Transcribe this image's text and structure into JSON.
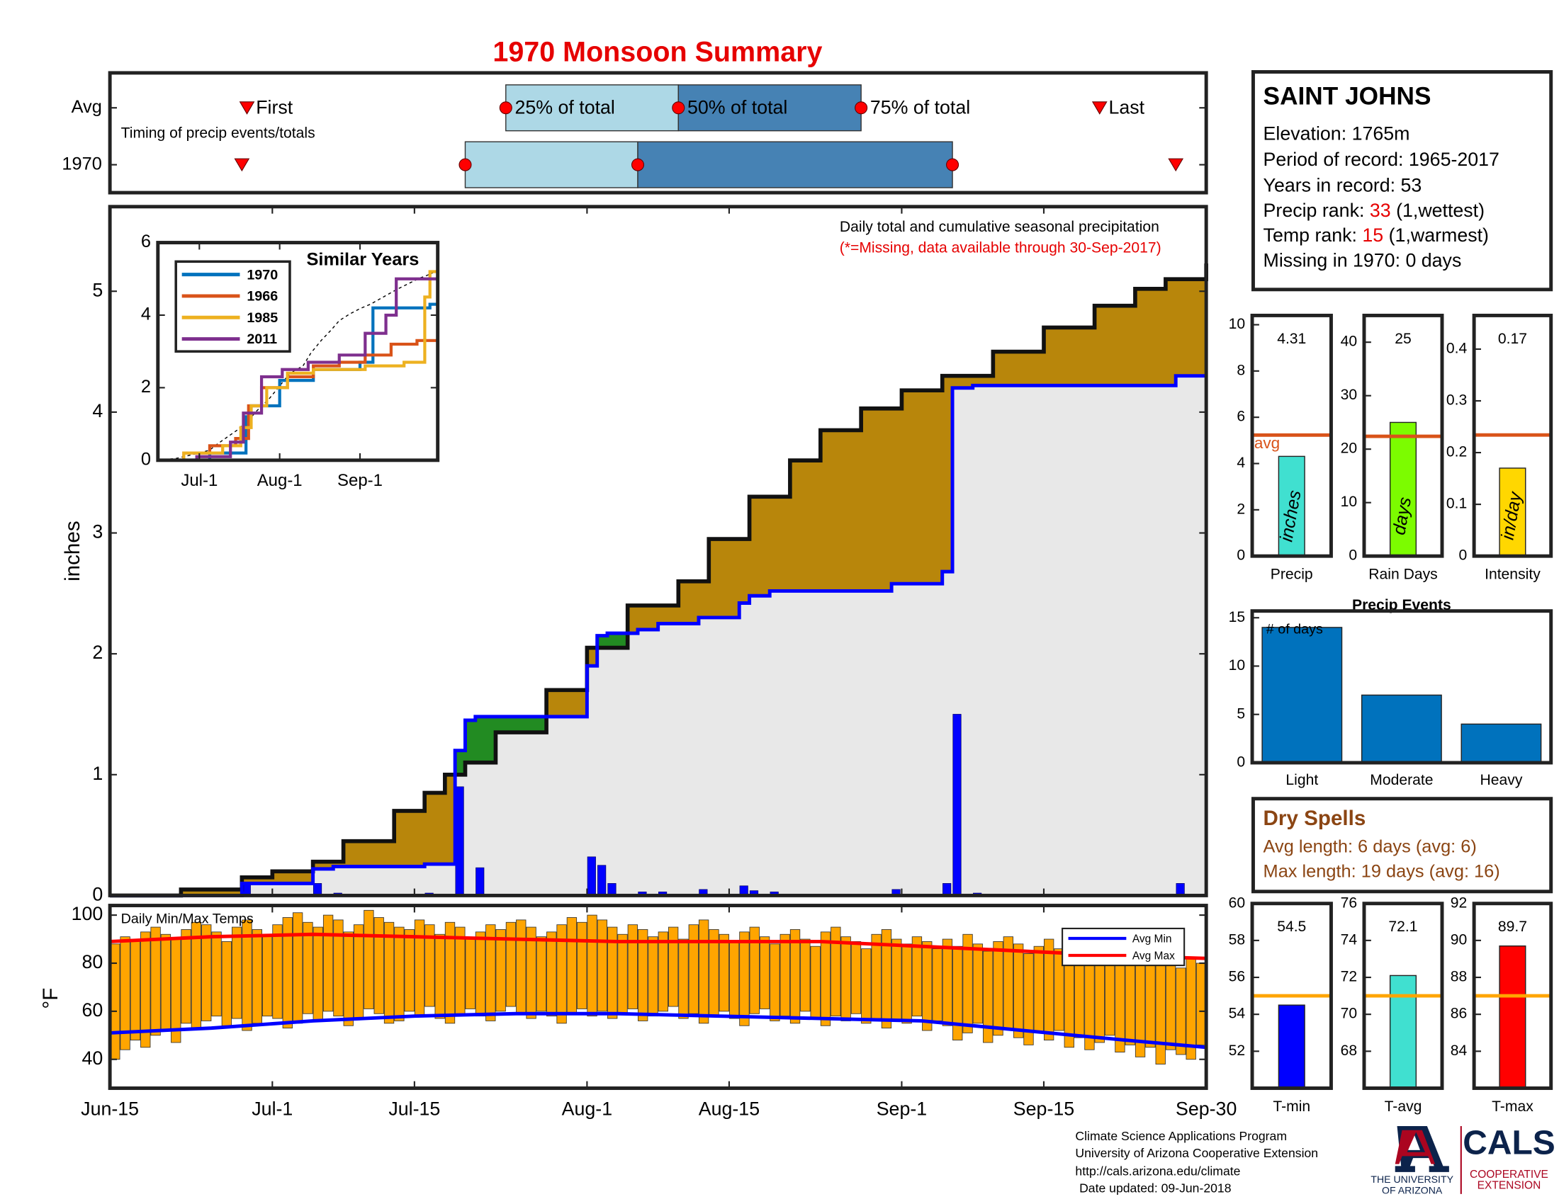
{
  "title": "1970 Monsoon Summary",
  "station": {
    "name": "SAINT JOHNS",
    "elevation": "Elevation: 1765m",
    "period": "Period of record: 1965-2017",
    "years": "Years in record: 53",
    "precip_rank": {
      "label": "Precip rank:",
      "value": 33,
      "note": "(1,wettest)"
    },
    "temp_rank": {
      "label": "Temp rank:",
      "value": 15,
      "note": "(1,warmest)"
    },
    "missing": "Missing in 1970: 0 days"
  },
  "dry_spells": {
    "title": "Dry Spells",
    "avg": "Avg length: 6 days (avg: 6)",
    "max": "Max length: 19 days (avg: 16)"
  },
  "footer": [
    "Climate Science Applications Program",
    "University of Arizona Cooperative Extension",
    "http://cals.arizona.edu/climate",
    "Date updated: 09-Jun-2018"
  ],
  "logos": {
    "ua": [
      "THE UNIVERSITY",
      "OF ARIZONA"
    ],
    "cals": "CALS",
    "coop": [
      "COOPERATIVE",
      "EXTENSION"
    ]
  },
  "chart_data": [
    {
      "type": "timing",
      "subtitle": "Timing of precip events/totals",
      "xlim": [
        0,
        108
      ],
      "rows": [
        {
          "name": "Avg",
          "values": [
            13.5,
            39,
            56,
            74,
            97.5
          ],
          "labels": [
            "First",
            "25% of total",
            "50% of total",
            "75% of total",
            "Last"
          ]
        },
        {
          "name": "1970",
          "values": [
            13,
            35,
            52,
            83,
            105
          ]
        }
      ],
      "box_colors": [
        "#add8e6",
        "#4682b4"
      ],
      "marker_color": "#ff0000"
    },
    {
      "type": "cumulative",
      "title": "Daily total and cumulative seasonal precipitation",
      "subtitle": "(*=Missing, data available through 30-Sep-2017)",
      "ylabel": "inches",
      "xlim": [
        0,
        108
      ],
      "xticks": [
        0,
        16,
        30,
        47,
        61,
        78,
        92,
        108
      ],
      "ylim": [
        0,
        5.7
      ],
      "yticks": [
        0,
        1,
        2,
        3,
        4,
        5
      ],
      "series": [
        {
          "color": "#b8860b",
          "x": [
            0,
            7,
            13,
            16,
            20,
            23,
            28,
            31,
            33,
            35,
            38,
            43,
            47,
            51,
            56,
            59,
            63,
            67,
            70,
            74,
            78,
            82,
            87,
            92,
            97,
            101,
            104,
            108
          ],
          "values": [
            0,
            0.05,
            0.15,
            0.2,
            0.28,
            0.45,
            0.7,
            0.85,
            1.0,
            1.1,
            1.35,
            1.7,
            2.05,
            2.4,
            2.6,
            2.95,
            3.3,
            3.6,
            3.85,
            4.03,
            4.18,
            4.3,
            4.5,
            4.7,
            4.88,
            5.02,
            5.1,
            5.23
          ]
        },
        {
          "color": "#0000ff",
          "x": [
            0,
            13,
            20,
            22,
            31,
            34,
            35,
            36,
            47,
            48,
            49,
            52,
            54,
            58,
            62,
            63,
            65,
            77,
            82,
            83,
            85,
            105,
            108
          ],
          "values": [
            0,
            0.1,
            0.22,
            0.24,
            0.26,
            1.2,
            1.45,
            1.48,
            1.9,
            2.15,
            2.17,
            2.2,
            2.25,
            2.3,
            2.42,
            2.48,
            2.52,
            2.58,
            2.68,
            4.2,
            4.22,
            4.3,
            4.3
          ]
        }
      ],
      "daily": {
        "color": "#0000ff",
        "x": [
          13,
          20,
          22,
          31,
          34,
          36,
          47,
          48,
          49,
          52,
          54,
          58,
          62,
          63,
          65,
          77,
          82,
          83,
          85,
          105
        ],
        "values": [
          0.1,
          0.1,
          0.02,
          0.02,
          0.9,
          0.23,
          0.32,
          0.25,
          0.1,
          0.03,
          0.03,
          0.05,
          0.08,
          0.04,
          0.03,
          0.05,
          0.1,
          1.5,
          0.02,
          0.1
        ]
      },
      "above_color": "#228b22",
      "below_color": "#e8e8e8",
      "drawstyle": "steps-post"
    },
    {
      "type": "inset",
      "title": "Similar Years",
      "xlim": [
        0,
        108
      ],
      "xticks": [
        {
          "value": 16,
          "label": "Jul-1"
        },
        {
          "value": 47,
          "label": "Aug-1"
        },
        {
          "value": 78,
          "label": "Sep-1"
        }
      ],
      "ylim": [
        0,
        6
      ],
      "yticks": [
        0,
        2,
        4,
        6
      ],
      "series": [
        {
          "name": "1970",
          "color": "#0072bd",
          "x": [
            0,
            20,
            34,
            36,
            47,
            60,
            78,
            83,
            105,
            108
          ],
          "values": [
            0,
            0.2,
            1.2,
            1.5,
            2.2,
            2.5,
            2.7,
            4.2,
            4.3,
            4.3
          ]
        },
        {
          "name": "1966",
          "color": "#d95319",
          "x": [
            0,
            10,
            20,
            30,
            35,
            40,
            50,
            60,
            70,
            80,
            90,
            100,
            108
          ],
          "values": [
            0,
            0.2,
            0.4,
            0.6,
            1.5,
            2.0,
            2.3,
            2.6,
            2.7,
            2.9,
            3.2,
            3.3,
            3.3
          ]
        },
        {
          "name": "1985",
          "color": "#edb120",
          "x": [
            0,
            10,
            25,
            32,
            36,
            42,
            50,
            60,
            80,
            95,
            103,
            105,
            108
          ],
          "values": [
            0,
            0.2,
            0.4,
            0.9,
            1.5,
            2.0,
            2.4,
            2.5,
            2.6,
            2.7,
            4.5,
            5.2,
            5.2
          ]
        },
        {
          "name": "2011",
          "color": "#7e2f8e",
          "x": [
            0,
            15,
            28,
            33,
            40,
            48,
            58,
            70,
            80,
            88,
            92,
            108
          ],
          "values": [
            0,
            0.1,
            0.5,
            1.3,
            2.3,
            2.5,
            2.7,
            2.9,
            3.5,
            4.0,
            5.0,
            5.0
          ]
        }
      ]
    },
    {
      "type": "range-bar",
      "title": "Daily Min/Max Temps",
      "ylabel": "°F",
      "xlim": [
        0,
        108
      ],
      "xticks": [
        {
          "value": 0,
          "label": "Jun-15"
        },
        {
          "value": 16,
          "label": "Jul-1"
        },
        {
          "value": 30,
          "label": "Jul-15"
        },
        {
          "value": 47,
          "label": "Aug-1"
        },
        {
          "value": 61,
          "label": "Aug-15"
        },
        {
          "value": 78,
          "label": "Sep-1"
        },
        {
          "value": 92,
          "label": "Sep-15"
        },
        {
          "value": 108,
          "label": "Sep-30"
        }
      ],
      "ylim": [
        28,
        104
      ],
      "yticks": [
        40,
        60,
        80,
        100
      ],
      "color": "#ffa500",
      "legend": "upper right",
      "min": [
        40,
        44,
        48,
        45,
        50,
        52,
        47,
        55,
        53,
        56,
        58,
        54,
        57,
        52,
        55,
        58,
        57,
        53,
        55,
        59,
        56,
        60,
        58,
        54,
        57,
        61,
        59,
        55,
        56,
        60,
        58,
        62,
        57,
        55,
        59,
        61,
        58,
        56,
        60,
        62,
        59,
        57,
        60,
        58,
        55,
        59,
        61,
        58,
        60,
        57,
        59,
        61,
        56,
        58,
        60,
        62,
        57,
        59,
        55,
        58,
        60,
        57,
        54,
        59,
        61,
        56,
        58,
        55,
        60,
        57,
        54,
        58,
        56,
        59,
        55,
        57,
        53,
        56,
        55,
        58,
        52,
        56,
        54,
        48,
        51,
        55,
        47,
        50,
        53,
        49,
        46,
        51,
        48,
        52,
        45,
        49,
        44,
        47,
        50,
        43,
        46,
        41,
        45,
        38,
        44,
        42,
        40,
        46
      ],
      "max": [
        88,
        91,
        90,
        93,
        95,
        92,
        90,
        94,
        97,
        96,
        93,
        89,
        95,
        98,
        94,
        92,
        96,
        99,
        101,
        97,
        95,
        100,
        98,
        93,
        96,
        102,
        99,
        97,
        95,
        94,
        98,
        96,
        92,
        97,
        95,
        90,
        93,
        96,
        94,
        97,
        98,
        95,
        91,
        93,
        96,
        99,
        97,
        100,
        98,
        95,
        92,
        96,
        94,
        91,
        93,
        95,
        90,
        96,
        98,
        94,
        92,
        89,
        93,
        95,
        91,
        88,
        92,
        94,
        90,
        87,
        93,
        95,
        91,
        89,
        86,
        92,
        94,
        90,
        88,
        91,
        89,
        86,
        90,
        87,
        92,
        88,
        85,
        89,
        91,
        88,
        84,
        87,
        90,
        86,
        83,
        88,
        85,
        82,
        87,
        84,
        86,
        81,
        84,
        80,
        83,
        78,
        82,
        80
      ],
      "lines": [
        {
          "name": "Avg Min",
          "color": "#0000ff",
          "x": [
            0,
            10,
            20,
            30,
            40,
            50,
            60,
            70,
            80,
            90,
            100,
            108
          ],
          "values": [
            51,
            53,
            56,
            58,
            59,
            59,
            58,
            57,
            56,
            52,
            48,
            45
          ]
        },
        {
          "name": "Avg Max",
          "color": "#ff0000",
          "x": [
            0,
            10,
            20,
            30,
            40,
            50,
            60,
            70,
            80,
            90,
            100,
            108
          ],
          "values": [
            89,
            91,
            92,
            91,
            90,
            89,
            89,
            89,
            87,
            85,
            83,
            82
          ]
        }
      ]
    },
    {
      "type": "summary-bar",
      "categories": [
        "Precip"
      ],
      "values": [
        4.31
      ],
      "color": "#40e0d0",
      "ylim": [
        0,
        10.4
      ],
      "yticks": [
        0,
        2,
        4,
        6,
        8,
        10
      ],
      "avg": 5.23,
      "avg_color": "#d95319",
      "avg_label": "avg",
      "bar_label": "inches"
    },
    {
      "type": "summary-bar",
      "categories": [
        "Rain Days"
      ],
      "values": [
        25
      ],
      "color": "#7cfc00",
      "ylim": [
        0,
        45
      ],
      "yticks": [
        0,
        10,
        20,
        30,
        40
      ],
      "avg": 22.4,
      "avg_color": "#d95319",
      "bar_label": "days"
    },
    {
      "type": "summary-bar",
      "categories": [
        "Intensity"
      ],
      "values": [
        0.17
      ],
      "color": "#ffd700",
      "ylim": [
        0,
        0.465
      ],
      "yticks": [
        0,
        0.1,
        0.2,
        0.3,
        0.4
      ],
      "avg": 0.234,
      "avg_color": "#d95319",
      "bar_label": "in/day"
    },
    {
      "type": "bar",
      "title": "Precip Events",
      "ylabel": "# of days",
      "categories": [
        "Light",
        "Moderate",
        "Heavy"
      ],
      "values": [
        14,
        7,
        4
      ],
      "color": "#0072bd",
      "ylim": [
        0,
        15.7
      ],
      "yticks": [
        0,
        5,
        10,
        15
      ]
    },
    {
      "type": "summary-bar",
      "categories": [
        "T-min"
      ],
      "values": [
        54.5
      ],
      "color": "#0000ff",
      "ylim": [
        50,
        60
      ],
      "yticks": [
        52,
        54,
        56,
        58,
        60
      ],
      "avg": 55,
      "avg_color": "#ffa500"
    },
    {
      "type": "summary-bar",
      "categories": [
        "T-avg"
      ],
      "values": [
        72.1
      ],
      "color": "#40e0d0",
      "ylim": [
        66,
        76
      ],
      "yticks": [
        68,
        70,
        72,
        74,
        76
      ],
      "avg": 71,
      "avg_color": "#ffa500"
    },
    {
      "type": "summary-bar",
      "categories": [
        "T-max"
      ],
      "values": [
        89.7
      ],
      "color": "#ff0000",
      "ylim": [
        82,
        92
      ],
      "yticks": [
        84,
        86,
        88,
        90,
        92
      ],
      "avg": 87,
      "avg_color": "#ffa500"
    }
  ]
}
